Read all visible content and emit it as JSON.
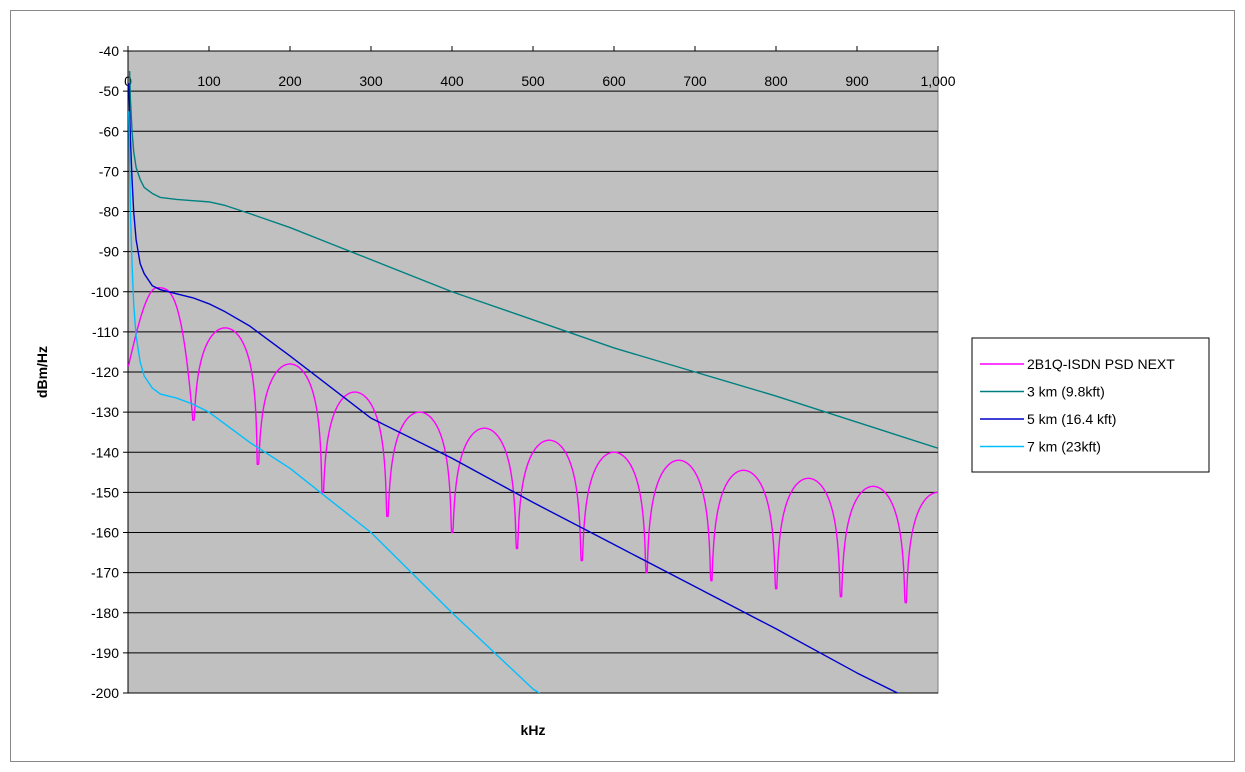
{
  "chart_data": {
    "type": "line",
    "title": "",
    "xlabel": "kHz",
    "ylabel": "dBm/Hz",
    "xlim": [
      0,
      1000
    ],
    "ylim": [
      -200,
      -40
    ],
    "x_ticks": [
      0,
      100,
      200,
      300,
      400,
      500,
      600,
      700,
      800,
      900,
      1000
    ],
    "x_tick_labels": [
      "0",
      "100",
      "200",
      "300",
      "400",
      "500",
      "600",
      "700",
      "800",
      "900",
      "1,000"
    ],
    "y_ticks": [
      -40,
      -50,
      -60,
      -70,
      -80,
      -90,
      -100,
      -110,
      -120,
      -130,
      -140,
      -150,
      -160,
      -170,
      -180,
      -190,
      -200
    ],
    "y_tick_labels": [
      "-40",
      "-50",
      "-60",
      "-70",
      "-80",
      "-90",
      "-100",
      "-110",
      "-120",
      "-130",
      "-140",
      "-150",
      "-160",
      "-170",
      "-180",
      "-190",
      "-200"
    ],
    "grid": "horizontal",
    "legend_position": "right",
    "series": [
      {
        "name": "2B1Q-ISDN PSD NEXT",
        "color": "#ff00ff",
        "kind": "sinc",
        "null_spacing_khz": 80,
        "lobe_peaks": [
          -99,
          -109,
          -118,
          -125,
          -130,
          -134,
          -137,
          -140,
          -142,
          -144.5,
          -146.5,
          -148.5,
          -150
        ],
        "null_depths": [
          -132,
          -143,
          -150,
          -156,
          -160,
          -164,
          -167,
          -170,
          -172,
          -174,
          -176,
          -177.5
        ]
      },
      {
        "name": "3 km (9.8kft)",
        "color": "#008080",
        "x": [
          2,
          3,
          5,
          7,
          10,
          15,
          20,
          30,
          40,
          60,
          80,
          100,
          120,
          150,
          200,
          250,
          300,
          400,
          500,
          600,
          700,
          800,
          900,
          1000
        ],
        "y": [
          -45,
          -52,
          -60,
          -65,
          -69,
          -72,
          -74,
          -75.5,
          -76.5,
          -77,
          -77.3,
          -77.6,
          -78.5,
          -80.5,
          -84,
          -88,
          -92,
          -100,
          -107,
          -114,
          -120,
          -126,
          -132.5,
          -139
        ]
      },
      {
        "name": "5 km (16.4 kft)",
        "color": "#0000cc",
        "x": [
          1,
          2,
          3,
          5,
          7,
          10,
          15,
          20,
          30,
          40,
          60,
          80,
          100,
          120,
          150,
          200,
          300,
          400,
          500,
          600,
          700,
          800,
          900,
          980
        ],
        "y": [
          -48,
          -55,
          -62,
          -72,
          -80,
          -87,
          -93,
          -95.5,
          -98.5,
          -99.5,
          -100.5,
          -101.5,
          -103,
          -105,
          -108.5,
          -116,
          -131.5,
          -141.5,
          -152.5,
          -163,
          -173.5,
          -184,
          -195,
          -203
        ]
      },
      {
        "name": "7 km (23kft)",
        "color": "#00bfff",
        "x": [
          1,
          2,
          3,
          5,
          7,
          10,
          15,
          20,
          30,
          40,
          60,
          80,
          100,
          120,
          150,
          200,
          250,
          300,
          400,
          500,
          530
        ],
        "y": [
          -55,
          -68,
          -80,
          -93,
          -103,
          -111,
          -117.5,
          -121,
          -124,
          -125.5,
          -126.5,
          -128,
          -130,
          -133,
          -137.5,
          -144,
          -152,
          -160,
          -180,
          -199,
          -203
        ]
      }
    ]
  }
}
